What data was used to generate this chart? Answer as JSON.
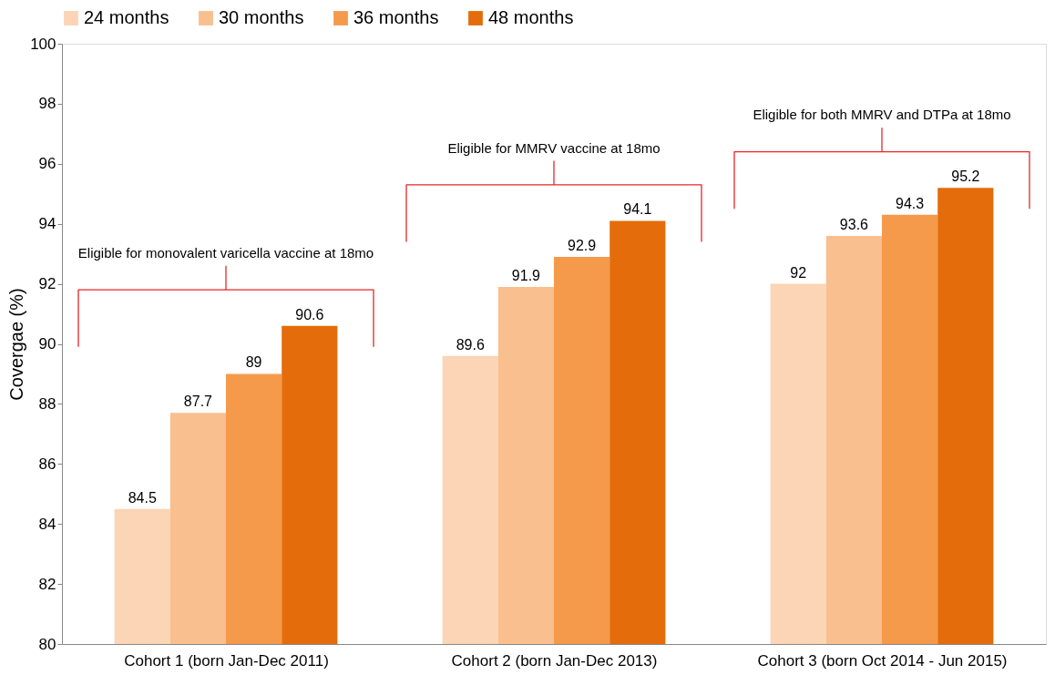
{
  "chart_data": {
    "type": "bar",
    "ylabel": "Covergae (%)",
    "categories": [
      "Cohort 1 (born Jan-Dec 2011)",
      "Cohort 2 (born Jan-Dec 2013)",
      "Cohort 3 (born Oct 2014 - Jun 2015)"
    ],
    "series": [
      {
        "name": "24 months",
        "color": "#fbd5b5",
        "values": [
          84.5,
          89.6,
          92
        ]
      },
      {
        "name": "30 months",
        "color": "#f9bf8f",
        "values": [
          87.7,
          91.9,
          93.6
        ]
      },
      {
        "name": "36 months",
        "color": "#f59a4b",
        "values": [
          89,
          92.9,
          94.3
        ]
      },
      {
        "name": "48 months",
        "color": "#e46c0a",
        "values": [
          90.6,
          94.1,
          95.2
        ]
      }
    ],
    "ylim": [
      80,
      100
    ],
    "yticks": [
      80,
      82,
      84,
      86,
      88,
      90,
      92,
      94,
      96,
      98,
      100
    ],
    "data_labels": true,
    "legend": "top",
    "grid": false,
    "annotations": [
      "Eligible for monovalent varicella vaccine at 18mo",
      "Eligible for MMRV vaccine at 18mo",
      "Eligible for both MMRV and DTPa at 18mo"
    ]
  }
}
